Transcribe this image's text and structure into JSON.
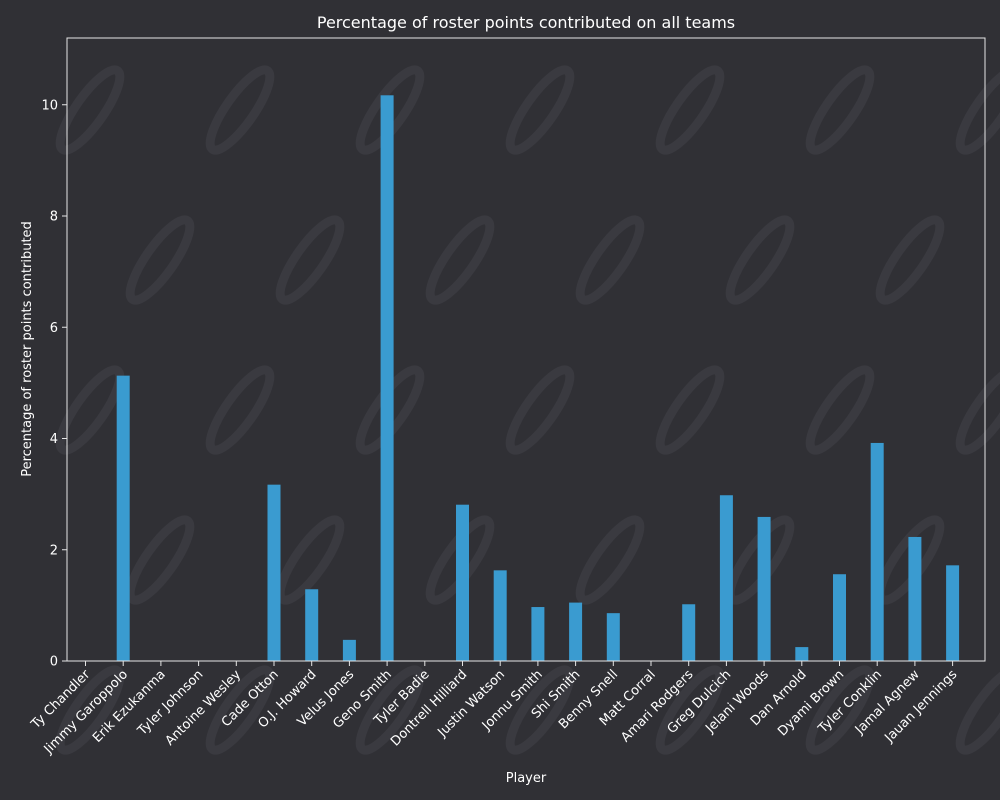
{
  "chart_data": {
    "type": "bar",
    "title": "Percentage of roster points contributed on all teams",
    "xlabel": "Player",
    "ylabel": "Percentage of roster points contributed",
    "ylim": [
      0,
      11.2
    ],
    "yticks": [
      0,
      2,
      4,
      6,
      8,
      10
    ],
    "grid": false,
    "categories": [
      "Ty Chandler",
      "Jimmy Garoppolo",
      "Erik Ezukanma",
      "Tyler Johnson",
      "Antoine Wesley",
      "Cade Otton",
      "O.J. Howard",
      "Velus Jones",
      "Geno Smith",
      "Tyler Badie",
      "Dontrell Hilliard",
      "Justin Watson",
      "Jonnu Smith",
      "Shi Smith",
      "Benny Snell",
      "Matt Corral",
      "Amari Rodgers",
      "Greg Dulcich",
      "Jelani Woods",
      "Dan Arnold",
      "Dyami Brown",
      "Tyler Conklin",
      "Jamal Agnew",
      "Jauan Jennings"
    ],
    "values": [
      0,
      5.13,
      0,
      0,
      0,
      3.17,
      1.29,
      0.38,
      10.17,
      0,
      2.81,
      1.63,
      0.97,
      1.05,
      0.86,
      0,
      1.02,
      2.98,
      2.59,
      0.25,
      1.56,
      3.92,
      2.23,
      1.72
    ],
    "colors": {
      "background": "#303035",
      "bar": "#3a9bd0",
      "axis": "#e6e6e6",
      "text": "#ffffff",
      "watermark": "#3a3a40"
    }
  }
}
